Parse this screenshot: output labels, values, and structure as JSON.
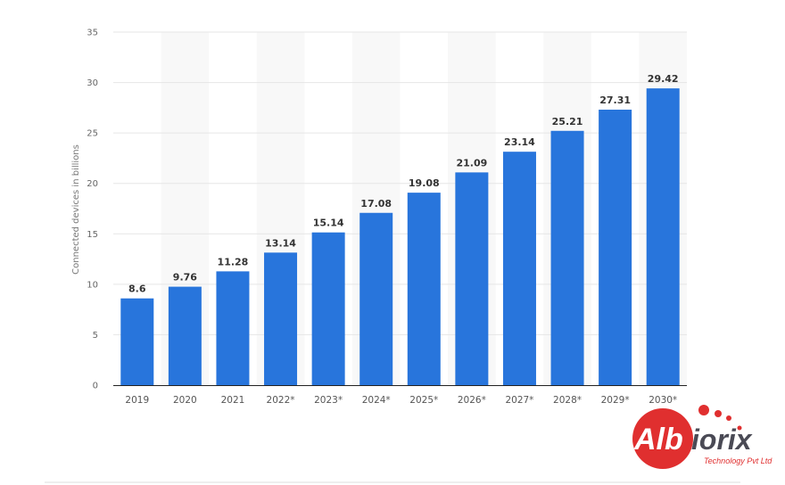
{
  "chart_data": {
    "type": "bar",
    "categories": [
      "2019",
      "2020",
      "2021",
      "2022*",
      "2023*",
      "2024*",
      "2025*",
      "2026*",
      "2027*",
      "2028*",
      "2029*",
      "2030*"
    ],
    "values": [
      8.6,
      9.76,
      11.28,
      13.14,
      15.14,
      17.08,
      19.08,
      21.09,
      23.14,
      25.21,
      27.31,
      29.42
    ],
    "value_labels": [
      "8.6",
      "9.76",
      "11.28",
      "13.14",
      "15.14",
      "17.08",
      "19.08",
      "21.09",
      "23.14",
      "25.21",
      "27.31",
      "29.42"
    ],
    "title": "",
    "xlabel": "",
    "ylabel": "Connected devices in billions",
    "ylim": [
      0,
      35
    ],
    "yticks": [
      0,
      5,
      10,
      15,
      20,
      25,
      30,
      35
    ],
    "grid": true,
    "bar_color": "#2875dc"
  },
  "logo": {
    "brand": "Albiorix",
    "tagline": "Technology Pvt Ltd",
    "red": "#e02f2f",
    "gray": "#4a4a55"
  }
}
